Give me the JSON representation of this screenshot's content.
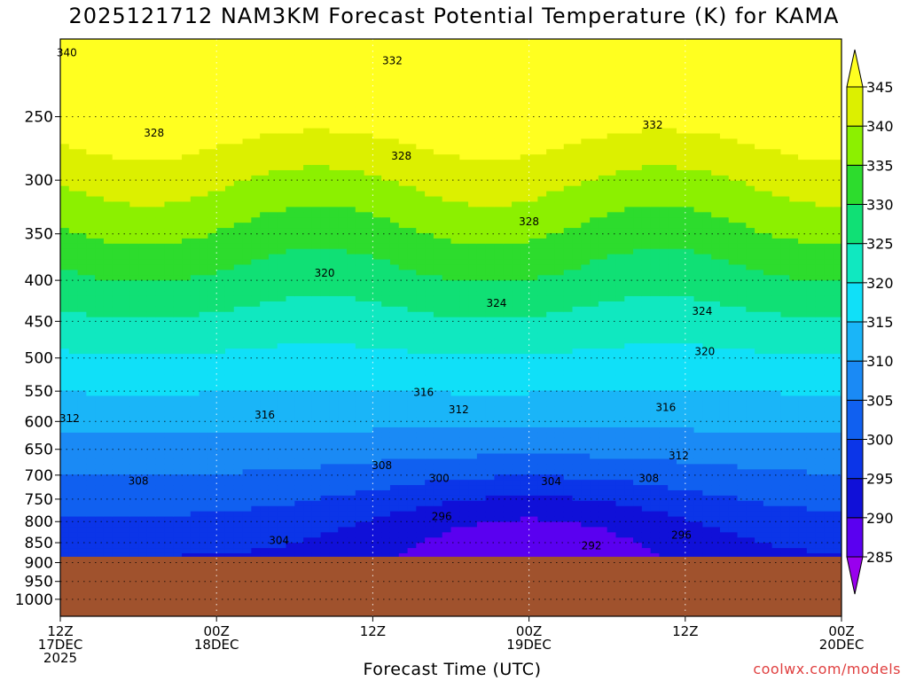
{
  "chart_data": {
    "type": "heatmap",
    "title": "2025121712 NAM3KM Forecast Potential Temperature (K) for KAMA",
    "xlabel": "Forecast Time (UTC)",
    "ylabel": "",
    "watermark": "coolwx.com/models",
    "x_ticks": [
      {
        "hour": 0,
        "line1": "12Z",
        "line2": "17DEC",
        "line3": "2025"
      },
      {
        "hour": 12,
        "line1": "00Z",
        "line2": "18DEC",
        "line3": ""
      },
      {
        "hour": 24,
        "line1": "12Z",
        "line2": "",
        "line3": ""
      },
      {
        "hour": 36,
        "line1": "00Z",
        "line2": "19DEC",
        "line3": ""
      },
      {
        "hour": 48,
        "line1": "12Z",
        "line2": "",
        "line3": ""
      },
      {
        "hour": 60,
        "line1": "00Z",
        "line2": "20DEC",
        "line3": ""
      }
    ],
    "x_range_hours": [
      0,
      60
    ],
    "y_ticks_hpa": [
      250,
      300,
      350,
      400,
      450,
      500,
      550,
      600,
      650,
      700,
      750,
      800,
      850,
      900,
      950,
      1000
    ],
    "y_range_hpa": [
      200,
      1050
    ],
    "y_scale": "log-pressure",
    "surface_pressure_hpa": 885,
    "colorbar": {
      "levels": [
        285,
        290,
        295,
        300,
        305,
        310,
        315,
        320,
        325,
        330,
        335,
        340,
        345
      ],
      "colors": [
        "#9900ee",
        "#5a00f0",
        "#1010d8",
        "#0b35e8",
        "#1060f0",
        "#1a8af5",
        "#1ab5f8",
        "#10e0f8",
        "#10e8c0",
        "#10e075",
        "#2ddc2d",
        "#8cf000",
        "#dcf000",
        "#ffff20"
      ],
      "placement": "right"
    },
    "contour_labels": [
      {
        "hour": 0.5,
        "p": 208,
        "value": "340"
      },
      {
        "hour": 25.5,
        "p": 213,
        "value": "332"
      },
      {
        "hour": 45.5,
        "p": 256,
        "value": "332"
      },
      {
        "hour": 7.2,
        "p": 262,
        "value": "328"
      },
      {
        "hour": 26.2,
        "p": 280,
        "value": "328"
      },
      {
        "hour": 36,
        "p": 338,
        "value": "328"
      },
      {
        "hour": 20.3,
        "p": 392,
        "value": "320"
      },
      {
        "hour": 33.5,
        "p": 427,
        "value": "324"
      },
      {
        "hour": 49.3,
        "p": 437,
        "value": "324"
      },
      {
        "hour": 49.5,
        "p": 491,
        "value": "320"
      },
      {
        "hour": 27.9,
        "p": 552,
        "value": "316"
      },
      {
        "hour": 46.5,
        "p": 576,
        "value": "316"
      },
      {
        "hour": 0.7,
        "p": 595,
        "value": "312"
      },
      {
        "hour": 30.6,
        "p": 580,
        "value": "312"
      },
      {
        "hour": 47.5,
        "p": 662,
        "value": "312"
      },
      {
        "hour": 15.7,
        "p": 589,
        "value": "316"
      },
      {
        "hour": 6,
        "p": 712,
        "value": "308"
      },
      {
        "hour": 24.7,
        "p": 681,
        "value": "308"
      },
      {
        "hour": 45.2,
        "p": 707,
        "value": "308"
      },
      {
        "hour": 29.1,
        "p": 707,
        "value": "300"
      },
      {
        "hour": 37.7,
        "p": 713,
        "value": "304"
      },
      {
        "hour": 29.3,
        "p": 788,
        "value": "296"
      },
      {
        "hour": 47.7,
        "p": 832,
        "value": "296"
      },
      {
        "hour": 16.8,
        "p": 844,
        "value": "304"
      },
      {
        "hour": 40.8,
        "p": 857,
        "value": "292"
      }
    ]
  }
}
